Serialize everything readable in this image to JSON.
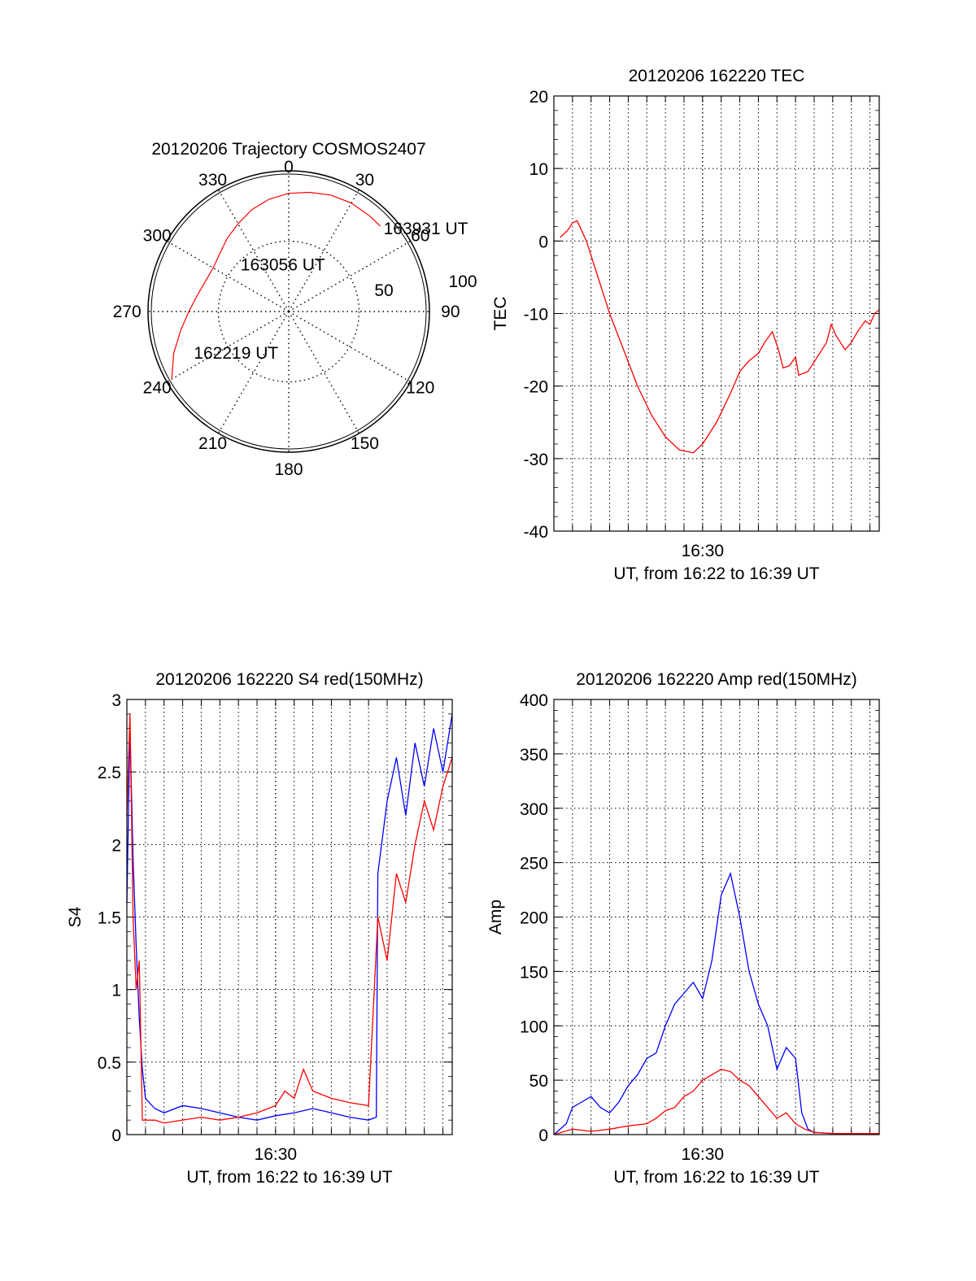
{
  "colors": {
    "red": "#ff0000",
    "blue": "#0000ff",
    "axis": "#000000",
    "grid": "#000000"
  },
  "chart_data": [
    {
      "type": "polar",
      "title": "20120206 Trajectory COSMOS2407",
      "angle_labels": [
        "0",
        "30",
        "60",
        "90",
        "120",
        "150",
        "180",
        "210",
        "240",
        "270",
        "300",
        "330"
      ],
      "radial_labels": [
        "50",
        "100"
      ],
      "rlim": [
        0,
        100
      ],
      "grid": true,
      "series": [
        {
          "color": "red",
          "points": [
            [
              240,
              96
            ],
            [
              250,
              87
            ],
            [
              260,
              78
            ],
            [
              270,
              71
            ],
            [
              280,
              66
            ],
            [
              290,
              63
            ],
            [
              300,
              62
            ],
            [
              310,
              64
            ],
            [
              320,
              68
            ],
            [
              330,
              72
            ],
            [
              340,
              77
            ],
            [
              350,
              81
            ],
            [
              0,
              84
            ],
            [
              10,
              86
            ],
            [
              20,
              88
            ],
            [
              30,
              89
            ],
            [
              40,
              89
            ],
            [
              47,
              89
            ]
          ]
        }
      ],
      "annotations": [
        {
          "text": "163931 UT",
          "angle": 47,
          "r": 89
        },
        {
          "text": "163056 UT",
          "angle": 356,
          "r": 35
        },
        {
          "text": "162219 UT",
          "angle": 248,
          "r": 74
        }
      ]
    },
    {
      "type": "line",
      "title": "20120206 162220 TEC",
      "xlabel": "UT, from 16:22 to 16:39 UT",
      "ylabel": "TEC",
      "xlim": [
        "16:22:00",
        "16:39:30"
      ],
      "ylim": [
        -40,
        20
      ],
      "yticks": [
        -40,
        -30,
        -20,
        -10,
        0,
        10,
        20
      ],
      "xtick_labels": [
        {
          "x": "16:30:00",
          "label": "16:30"
        }
      ],
      "grid": true,
      "series": [
        {
          "color": "red",
          "points": [
            [
              "16:22:20",
              0.5
            ],
            [
              "16:22:45",
              1.5
            ],
            [
              "16:23:00",
              2.5
            ],
            [
              "16:23:15",
              2.8
            ],
            [
              "16:23:45",
              0
            ],
            [
              "16:24:15",
              -4
            ],
            [
              "16:25:00",
              -10
            ],
            [
              "16:25:45",
              -15
            ],
            [
              "16:26:30",
              -20
            ],
            [
              "16:27:15",
              -24
            ],
            [
              "16:28:00",
              -27
            ],
            [
              "16:28:45",
              -28.8
            ],
            [
              "16:29:30",
              -29.2
            ],
            [
              "16:30:00",
              -28
            ],
            [
              "16:30:45",
              -25
            ],
            [
              "16:31:30",
              -21
            ],
            [
              "16:32:00",
              -18
            ],
            [
              "16:32:30",
              -16.5
            ],
            [
              "16:33:00",
              -15.5
            ],
            [
              "16:33:20",
              -14
            ],
            [
              "16:33:45",
              -12.5
            ],
            [
              "16:34:05",
              -15
            ],
            [
              "16:34:20",
              -17.5
            ],
            [
              "16:34:40",
              -17.2
            ],
            [
              "16:35:00",
              -16
            ],
            [
              "16:35:10",
              -18.5
            ],
            [
              "16:35:40",
              -18
            ],
            [
              "16:36:10",
              -16
            ],
            [
              "16:36:40",
              -14
            ],
            [
              "16:36:55",
              -11.5
            ],
            [
              "16:37:10",
              -13
            ],
            [
              "16:37:40",
              -15
            ],
            [
              "16:38:00",
              -14
            ],
            [
              "16:38:20",
              -12.5
            ],
            [
              "16:38:45",
              -11
            ],
            [
              "16:39:00",
              -11.5
            ],
            [
              "16:39:15",
              -10
            ],
            [
              "16:39:30",
              -9.5
            ]
          ]
        }
      ]
    },
    {
      "type": "line",
      "title": "20120206 162220 S4 red(150MHz)",
      "xlabel": "UT, from 16:22 to 16:39 UT",
      "ylabel": "S4",
      "xlim": [
        "16:22:00",
        "16:39:30"
      ],
      "ylim": [
        0,
        3
      ],
      "yticks": [
        0,
        0.5,
        1,
        1.5,
        2,
        2.5,
        3
      ],
      "ytick_labels": [
        "0",
        "0.5",
        "1",
        "1.5",
        "2",
        "2.5",
        "3"
      ],
      "xtick_labels": [
        {
          "x": "16:30:00",
          "label": "16:30"
        }
      ],
      "grid": true,
      "series": [
        {
          "color": "blue",
          "points": [
            [
              "16:22:00",
              1.6
            ],
            [
              "16:22:10",
              2.8
            ],
            [
              "16:22:20",
              1.9
            ],
            [
              "16:22:30",
              1.3
            ],
            [
              "16:22:40",
              0.8
            ],
            [
              "16:22:50",
              0.45
            ],
            [
              "16:23:00",
              0.25
            ],
            [
              "16:23:30",
              0.18
            ],
            [
              "16:24:00",
              0.15
            ],
            [
              "16:25:00",
              0.2
            ],
            [
              "16:26:00",
              0.18
            ],
            [
              "16:27:00",
              0.15
            ],
            [
              "16:28:00",
              0.12
            ],
            [
              "16:29:00",
              0.1
            ],
            [
              "16:30:00",
              0.13
            ],
            [
              "16:31:00",
              0.15
            ],
            [
              "16:32:00",
              0.18
            ],
            [
              "16:33:00",
              0.15
            ],
            [
              "16:34:00",
              0.12
            ],
            [
              "16:35:00",
              0.1
            ],
            [
              "16:35:25",
              0.12
            ],
            [
              "16:35:30",
              1.8
            ],
            [
              "16:36:00",
              2.3
            ],
            [
              "16:36:30",
              2.6
            ],
            [
              "16:37:00",
              2.2
            ],
            [
              "16:37:30",
              2.7
            ],
            [
              "16:38:00",
              2.4
            ],
            [
              "16:38:30",
              2.8
            ],
            [
              "16:39:00",
              2.5
            ],
            [
              "16:39:30",
              2.9
            ]
          ]
        },
        {
          "color": "red",
          "points": [
            [
              "16:22:00",
              2.2
            ],
            [
              "16:22:10",
              2.9
            ],
            [
              "16:22:20",
              1.5
            ],
            [
              "16:22:30",
              1.0
            ],
            [
              "16:22:40",
              1.2
            ],
            [
              "16:22:50",
              0.1
            ],
            [
              "16:23:30",
              0.1
            ],
            [
              "16:24:00",
              0.08
            ],
            [
              "16:25:00",
              0.1
            ],
            [
              "16:26:00",
              0.12
            ],
            [
              "16:27:00",
              0.1
            ],
            [
              "16:28:00",
              0.12
            ],
            [
              "16:29:00",
              0.15
            ],
            [
              "16:30:00",
              0.2
            ],
            [
              "16:30:30",
              0.3
            ],
            [
              "16:31:00",
              0.25
            ],
            [
              "16:31:30",
              0.45
            ],
            [
              "16:32:00",
              0.3
            ],
            [
              "16:33:00",
              0.25
            ],
            [
              "16:34:00",
              0.22
            ],
            [
              "16:35:00",
              0.2
            ],
            [
              "16:35:30",
              1.5
            ],
            [
              "16:36:00",
              1.2
            ],
            [
              "16:36:30",
              1.8
            ],
            [
              "16:37:00",
              1.6
            ],
            [
              "16:37:30",
              2.0
            ],
            [
              "16:38:00",
              2.3
            ],
            [
              "16:38:30",
              2.1
            ],
            [
              "16:39:00",
              2.4
            ],
            [
              "16:39:30",
              2.6
            ]
          ]
        }
      ]
    },
    {
      "type": "line",
      "title": "20120206 162220 Amp red(150MHz)",
      "xlabel": "UT, from 16:22 to 16:39 UT",
      "ylabel": "Amp",
      "xlim": [
        "16:22:00",
        "16:39:30"
      ],
      "ylim": [
        0,
        400
      ],
      "yticks": [
        0,
        50,
        100,
        150,
        200,
        250,
        300,
        350,
        400
      ],
      "xtick_labels": [
        {
          "x": "16:30:00",
          "label": "16:30"
        }
      ],
      "grid": true,
      "series": [
        {
          "color": "blue",
          "points": [
            [
              "16:22:00",
              0
            ],
            [
              "16:22:40",
              10
            ],
            [
              "16:23:00",
              25
            ],
            [
              "16:23:30",
              30
            ],
            [
              "16:24:00",
              35
            ],
            [
              "16:24:30",
              25
            ],
            [
              "16:25:00",
              20
            ],
            [
              "16:25:30",
              30
            ],
            [
              "16:26:00",
              45
            ],
            [
              "16:26:30",
              55
            ],
            [
              "16:27:00",
              70
            ],
            [
              "16:27:30",
              75
            ],
            [
              "16:28:00",
              100
            ],
            [
              "16:28:30",
              120
            ],
            [
              "16:29:00",
              130
            ],
            [
              "16:29:30",
              140
            ],
            [
              "16:30:00",
              125
            ],
            [
              "16:30:30",
              160
            ],
            [
              "16:31:00",
              220
            ],
            [
              "16:31:30",
              240
            ],
            [
              "16:32:00",
              200
            ],
            [
              "16:32:30",
              150
            ],
            [
              "16:33:00",
              120
            ],
            [
              "16:33:30",
              100
            ],
            [
              "16:34:00",
              60
            ],
            [
              "16:34:30",
              80
            ],
            [
              "16:35:00",
              70
            ],
            [
              "16:35:20",
              20
            ],
            [
              "16:35:40",
              5
            ],
            [
              "16:36:00",
              2
            ],
            [
              "16:37:00",
              1
            ],
            [
              "16:38:00",
              1
            ],
            [
              "16:39:30",
              1
            ]
          ]
        },
        {
          "color": "red",
          "points": [
            [
              "16:22:00",
              0
            ],
            [
              "16:23:00",
              5
            ],
            [
              "16:24:00",
              3
            ],
            [
              "16:25:00",
              5
            ],
            [
              "16:26:00",
              8
            ],
            [
              "16:27:00",
              10
            ],
            [
              "16:27:30",
              15
            ],
            [
              "16:28:00",
              22
            ],
            [
              "16:28:30",
              25
            ],
            [
              "16:29:00",
              35
            ],
            [
              "16:29:30",
              40
            ],
            [
              "16:30:00",
              50
            ],
            [
              "16:30:30",
              55
            ],
            [
              "16:31:00",
              60
            ],
            [
              "16:31:30",
              58
            ],
            [
              "16:32:00",
              50
            ],
            [
              "16:32:30",
              45
            ],
            [
              "16:33:00",
              35
            ],
            [
              "16:33:30",
              25
            ],
            [
              "16:34:00",
              15
            ],
            [
              "16:34:30",
              20
            ],
            [
              "16:35:00",
              10
            ],
            [
              "16:35:30",
              5
            ],
            [
              "16:36:00",
              2
            ],
            [
              "16:37:00",
              1
            ],
            [
              "16:39:30",
              1
            ]
          ]
        }
      ]
    }
  ]
}
